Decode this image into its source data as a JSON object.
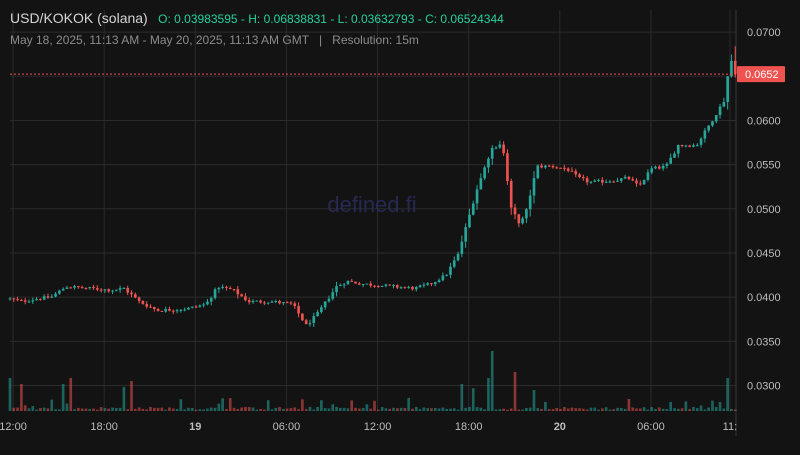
{
  "header": {
    "pair": "USD/KOKOK (solana)",
    "open": "O: 0.03983595",
    "high": "H: 0.06838831",
    "low": "L: 0.03632793",
    "close": "C: 0.06524344",
    "date_range": "May 18, 2025, 11:13 AM - May 20, 2025, 11:13 AM GMT",
    "separator": "|",
    "resolution": "Resolution: 15m"
  },
  "watermark": "defined.fi",
  "colors": {
    "background": "#131313",
    "up": "#26a69a",
    "down": "#ef5350",
    "grid": "#2b2b2b",
    "price_tag": "#ef5350"
  },
  "chart_data": {
    "type": "candlestick",
    "interval": "15m",
    "y_axis": {
      "min": 0.027,
      "max": 0.0725,
      "ticks": [
        0.07,
        0.065,
        0.06,
        0.055,
        0.05,
        0.045,
        0.04,
        0.035,
        0.03
      ],
      "tick_labels": [
        "0.0700",
        "0.0650",
        "0.0600",
        "0.0550",
        "0.0500",
        "0.0450",
        "0.0400",
        "0.0350",
        "0.0300"
      ]
    },
    "x_axis": {
      "ticks": [
        {
          "label": "12:00",
          "hour": 0,
          "bold": false
        },
        {
          "label": "18:00",
          "hour": 6,
          "bold": false
        },
        {
          "label": "19",
          "hour": 12,
          "bold": true
        },
        {
          "label": "06:00",
          "hour": 18,
          "bold": false
        },
        {
          "label": "12:00",
          "hour": 24,
          "bold": false
        },
        {
          "label": "18:00",
          "hour": 30,
          "bold": false
        },
        {
          "label": "20",
          "hour": 36,
          "bold": true
        },
        {
          "label": "06:00",
          "hour": 42,
          "bold": false
        },
        {
          "label": "11:",
          "hour": 47.2,
          "bold": false
        }
      ],
      "hour_min": -0.2,
      "hour_max": 47.6
    },
    "current_price": {
      "value": 0.06524344,
      "label": "0.0652"
    },
    "anchors": [
      [
        -0.2,
        0.0398
      ],
      [
        0.5,
        0.0395
      ],
      [
        1.5,
        0.0398
      ],
      [
        2.5,
        0.04
      ],
      [
        3.5,
        0.0412
      ],
      [
        5,
        0.041
      ],
      [
        6.5,
        0.0408
      ],
      [
        7.3,
        0.041
      ],
      [
        8.3,
        0.0395
      ],
      [
        9.5,
        0.0385
      ],
      [
        11.5,
        0.0387
      ],
      [
        12.7,
        0.0392
      ],
      [
        13.5,
        0.0412
      ],
      [
        14.5,
        0.0408
      ],
      [
        15.5,
        0.0395
      ],
      [
        17,
        0.0395
      ],
      [
        18.4,
        0.0392
      ],
      [
        19.3,
        0.0368
      ],
      [
        20,
        0.038
      ],
      [
        21.3,
        0.0412
      ],
      [
        22,
        0.0418
      ],
      [
        23,
        0.0415
      ],
      [
        25,
        0.0412
      ],
      [
        26.5,
        0.041
      ],
      [
        27.5,
        0.0415
      ],
      [
        28.5,
        0.0425
      ],
      [
        29.3,
        0.0448
      ],
      [
        30.5,
        0.052
      ],
      [
        31.5,
        0.0568
      ],
      [
        32.2,
        0.0575
      ],
      [
        32.8,
        0.05
      ],
      [
        33.4,
        0.0482
      ],
      [
        33.8,
        0.0498
      ],
      [
        34.5,
        0.0548
      ],
      [
        35.5,
        0.0548
      ],
      [
        36.5,
        0.0545
      ],
      [
        37.2,
        0.0535
      ],
      [
        38,
        0.053
      ],
      [
        39.5,
        0.0532
      ],
      [
        40.5,
        0.0535
      ],
      [
        41.2,
        0.0525
      ],
      [
        42,
        0.0545
      ],
      [
        43,
        0.0548
      ],
      [
        43.8,
        0.0572
      ],
      [
        45,
        0.0572
      ],
      [
        46.2,
        0.0605
      ],
      [
        46.9,
        0.0625
      ],
      [
        47.2,
        0.0675
      ],
      [
        47.5,
        0.0652
      ]
    ],
    "volume_spikes": [
      [
        -0.2,
        0.55
      ],
      [
        0.5,
        0.45
      ],
      [
        3.2,
        0.45
      ],
      [
        3.7,
        0.55
      ],
      [
        7.4,
        0.4
      ],
      [
        7.9,
        0.5
      ],
      [
        16.8,
        0.18
      ],
      [
        20.3,
        0.18
      ],
      [
        29.6,
        0.45
      ],
      [
        30.4,
        0.38
      ],
      [
        31.2,
        0.55
      ],
      [
        31.6,
        1.0
      ],
      [
        33.1,
        0.65
      ],
      [
        34.3,
        0.35
      ],
      [
        40.5,
        0.2
      ],
      [
        43.2,
        0.15
      ],
      [
        46.5,
        0.15
      ],
      [
        47,
        0.55
      ]
    ]
  }
}
